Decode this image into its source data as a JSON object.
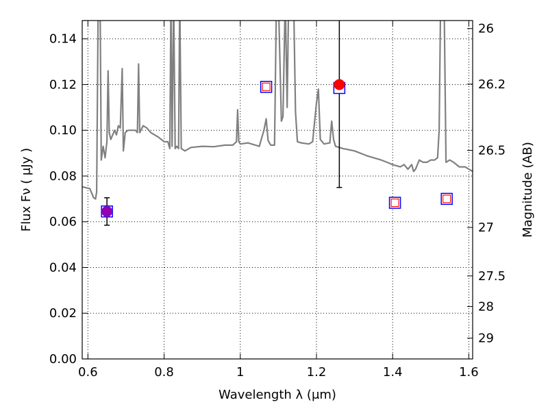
{
  "chart_data": {
    "type": "scatter",
    "xlabel": "Wavelength  λ (μm)",
    "ylabel": "Flux  Fν  ( μJy )",
    "ylabel_right": "Magnitude (AB)",
    "xlim": [
      0.585,
      1.61
    ],
    "ylim": [
      0.0,
      0.148
    ],
    "grid": true,
    "x_ticks": [
      0.6,
      0.8,
      1.0,
      1.2,
      1.4,
      1.6
    ],
    "x_tick_labels": [
      "0.6",
      "0.8",
      "1",
      "1.2",
      "1.4",
      "1.6"
    ],
    "y_ticks": [
      0.0,
      0.02,
      0.04,
      0.06,
      0.08,
      0.1,
      0.12,
      0.14
    ],
    "y_tick_labels": [
      "0.00",
      "0.02",
      "0.04",
      "0.06",
      "0.08",
      "0.10",
      "0.12",
      "0.14"
    ],
    "right_ticks": [
      {
        "label": "26",
        "flux": 0.1445
      },
      {
        "label": "26.2",
        "flux": 0.1202
      },
      {
        "label": "26.5",
        "flux": 0.0912
      },
      {
        "label": "27",
        "flux": 0.0575
      },
      {
        "label": "27.5",
        "flux": 0.0363
      },
      {
        "label": "28",
        "flux": 0.0229
      },
      {
        "label": "29",
        "flux": 0.0091
      }
    ],
    "model_spectrum": {
      "color": "#808080",
      "points": [
        [
          0.585,
          0.0753
        ],
        [
          0.605,
          0.0745
        ],
        [
          0.615,
          0.0705
        ],
        [
          0.62,
          0.07
        ],
        [
          0.623,
          0.073
        ],
        [
          0.627,
          0.158
        ],
        [
          0.632,
          0.158
        ],
        [
          0.635,
          0.087
        ],
        [
          0.64,
          0.093
        ],
        [
          0.645,
          0.088
        ],
        [
          0.65,
          0.095
        ],
        [
          0.653,
          0.126
        ],
        [
          0.656,
          0.099
        ],
        [
          0.66,
          0.096
        ],
        [
          0.67,
          0.1
        ],
        [
          0.675,
          0.098
        ],
        [
          0.68,
          0.102
        ],
        [
          0.685,
          0.101
        ],
        [
          0.69,
          0.127
        ],
        [
          0.693,
          0.091
        ],
        [
          0.698,
          0.099
        ],
        [
          0.705,
          0.1
        ],
        [
          0.715,
          0.1
        ],
        [
          0.725,
          0.1
        ],
        [
          0.73,
          0.099
        ],
        [
          0.733,
          0.129
        ],
        [
          0.736,
          0.099
        ],
        [
          0.745,
          0.102
        ],
        [
          0.755,
          0.101
        ],
        [
          0.765,
          0.099
        ],
        [
          0.785,
          0.097
        ],
        [
          0.8,
          0.095
        ],
        [
          0.81,
          0.095
        ],
        [
          0.815,
          0.092
        ],
        [
          0.818,
          0.158
        ],
        [
          0.821,
          0.093
        ],
        [
          0.825,
          0.158
        ],
        [
          0.829,
          0.092
        ],
        [
          0.833,
          0.093
        ],
        [
          0.838,
          0.092
        ],
        [
          0.841,
          0.158
        ],
        [
          0.845,
          0.092
        ],
        [
          0.855,
          0.091
        ],
        [
          0.87,
          0.0925
        ],
        [
          0.9,
          0.093
        ],
        [
          0.93,
          0.0928
        ],
        [
          0.96,
          0.0935
        ],
        [
          0.98,
          0.0935
        ],
        [
          0.99,
          0.095
        ],
        [
          0.993,
          0.109
        ],
        [
          0.996,
          0.095
        ],
        [
          1.0,
          0.094
        ],
        [
          1.02,
          0.0945
        ],
        [
          1.04,
          0.0935
        ],
        [
          1.05,
          0.093
        ],
        [
          1.055,
          0.096
        ],
        [
          1.062,
          0.1
        ],
        [
          1.068,
          0.105
        ],
        [
          1.073,
          0.0955
        ],
        [
          1.08,
          0.0935
        ],
        [
          1.09,
          0.0935
        ],
        [
          1.095,
          0.158
        ],
        [
          1.1,
          0.158
        ],
        [
          1.108,
          0.104
        ],
        [
          1.112,
          0.106
        ],
        [
          1.118,
          0.158
        ],
        [
          1.123,
          0.11
        ],
        [
          1.127,
          0.158
        ],
        [
          1.14,
          0.158
        ],
        [
          1.145,
          0.108
        ],
        [
          1.15,
          0.095
        ],
        [
          1.16,
          0.0945
        ],
        [
          1.18,
          0.094
        ],
        [
          1.19,
          0.095
        ],
        [
          1.2,
          0.112
        ],
        [
          1.205,
          0.118
        ],
        [
          1.21,
          0.096
        ],
        [
          1.22,
          0.094
        ],
        [
          1.235,
          0.0945
        ],
        [
          1.24,
          0.104
        ],
        [
          1.245,
          0.096
        ],
        [
          1.25,
          0.093
        ],
        [
          1.27,
          0.092
        ],
        [
          1.3,
          0.091
        ],
        [
          1.33,
          0.089
        ],
        [
          1.35,
          0.088
        ],
        [
          1.37,
          0.087
        ],
        [
          1.385,
          0.086
        ],
        [
          1.4,
          0.085
        ],
        [
          1.42,
          0.084
        ],
        [
          1.43,
          0.085
        ],
        [
          1.44,
          0.083
        ],
        [
          1.45,
          0.085
        ],
        [
          1.455,
          0.082
        ],
        [
          1.46,
          0.083
        ],
        [
          1.47,
          0.087
        ],
        [
          1.48,
          0.086
        ],
        [
          1.49,
          0.086
        ],
        [
          1.5,
          0.087
        ],
        [
          1.51,
          0.087
        ],
        [
          1.518,
          0.088
        ],
        [
          1.522,
          0.1
        ],
        [
          1.526,
          0.158
        ],
        [
          1.535,
          0.158
        ],
        [
          1.54,
          0.086
        ],
        [
          1.55,
          0.087
        ],
        [
          1.56,
          0.086
        ],
        [
          1.575,
          0.084
        ],
        [
          1.59,
          0.084
        ],
        [
          1.61,
          0.082
        ]
      ]
    },
    "model_photometry": {
      "edge_color": "#0000ff",
      "face_color": "#ffffff",
      "points": [
        {
          "x": 0.65,
          "y": 0.0645
        },
        {
          "x": 1.068,
          "y": 0.119
        },
        {
          "x": 1.26,
          "y": 0.1185
        },
        {
          "x": 1.406,
          "y": 0.0683
        },
        {
          "x": 1.542,
          "y": 0.07
        }
      ]
    },
    "upper_limits": {
      "edge_color": "#ff0000",
      "points": [
        {
          "x": 1.068,
          "y": 0.119
        },
        {
          "x": 1.406,
          "y": 0.0683
        },
        {
          "x": 1.542,
          "y": 0.07
        }
      ]
    },
    "detections": [
      {
        "x": 0.65,
        "y": 0.0645,
        "yerr_low": 0.0585,
        "yerr_high": 0.0705,
        "color": "#9400b4"
      },
      {
        "x": 1.26,
        "y": 0.12,
        "yerr_low": 0.075,
        "yerr_high": 0.158,
        "color": "#ff0000"
      }
    ]
  }
}
